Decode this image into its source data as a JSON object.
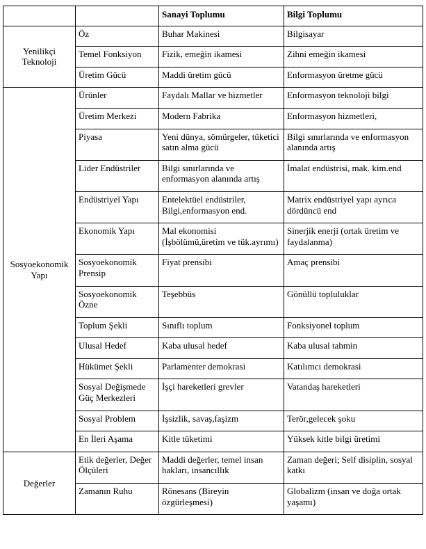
{
  "columns": {
    "blank": "",
    "sub_blank": "",
    "col1": "Sanayi Toplumu",
    "col2": "Bilgi Toplumu"
  },
  "groups": [
    {
      "label": "Yenilikçi Teknoloji",
      "rows": [
        {
          "sub": "Öz",
          "c1": "Buhar Makinesi",
          "c2": "Bilgisayar"
        },
        {
          "sub": "Temel Fonksiyon",
          "c1": "Fizik, emeğin ikamesi",
          "c2": "Zihni emeğin ikamesi"
        },
        {
          "sub": "Üretim Gücü",
          "c1": "Maddi üretim gücü",
          "c2": "Enformasyon üretme gücü"
        }
      ]
    },
    {
      "label": "Sosyoekonomik Yapı",
      "rows": [
        {
          "sub": "Ürünler",
          "c1": "Faydalı Mallar ve hizmetler",
          "c2": "Enformasyon teknoloji bilgi"
        },
        {
          "sub": "Üretim Merkezi",
          "c1": "Modern Fabrika",
          "c2": "Enformasyon hizmetleri,"
        },
        {
          "sub": "Piyasa",
          "c1": "Yeni dünya, sömürgeler, tüketici satın alma gücü",
          "c2": "Bilgi sınırlarında ve enformasyon alanında artış"
        },
        {
          "sub": "Lider Endüstriler",
          "c1": "Bilgi sınırlarında ve enformasyon alanında artış",
          "c2": "İmalat endüstrisi, mak. kim.end"
        },
        {
          "sub": "Endüstriyel Yapı",
          "c1": "Entelektüel endüstriler, Bilgi,enformasyon end.",
          "c2": "Matrix endüstriyel yapı ayrıca dördüncü end"
        },
        {
          "sub": "Ekonomik Yapı",
          "c1": "Mal ekonomisi (İşbölümü,üretim ve tük.ayrımı)",
          "c2": "Sinerjik enerji (ortak üretim ve faydalanma)"
        },
        {
          "sub": "Sosyoekonomik Prensip",
          "c1": "Fiyat prensibi",
          "c2": "Amaç prensibi"
        },
        {
          "sub": "Sosyoekonomik Özne",
          "c1": "Teşebbüs",
          "c2": "Gönüllü topluluklar"
        },
        {
          "sub": "Toplum Şekli",
          "c1": "Sınıflı toplum",
          "c2": "Fonksiyonel toplum"
        },
        {
          "sub": "Ulusal Hedef",
          "c1": "Kaba ulusal hedef",
          "c2": "Kaba ulusal tahmin"
        },
        {
          "sub": "Hükümet Şekli",
          "c1": "Parlamenter demokrasi",
          "c2": "Katılımcı demokrasi"
        },
        {
          "sub": "Sosyal Değişmede Güç Merkezleri",
          "c1": "İşçi hareketleri grevler",
          "c2": "Vatandaş hareketleri"
        },
        {
          "sub": "Sosyal Problem",
          "c1": "İşsizlik, savaş,faşizm",
          "c2": "Terör,gelecek şoku"
        },
        {
          "sub": "En İleri Aşama",
          "c1": "Kitle tüketimi",
          "c2": "Yüksek kitle bilgi üretimi"
        }
      ]
    },
    {
      "label": "Değerler",
      "rows": [
        {
          "sub": "Etik değerler, Değer Ölçüleri",
          "c1": "Maddi değerler, temel insan hakları, insancıllık",
          "c2": "Zaman değeri; Self disiplin, sosyal katkı"
        },
        {
          "sub": "Zamanın Ruhu",
          "c1": "Rönesans (Bireyin özgürleşmesi)",
          "c2": "Globalizm (insan ve doğa ortak yaşamı)"
        }
      ]
    }
  ]
}
